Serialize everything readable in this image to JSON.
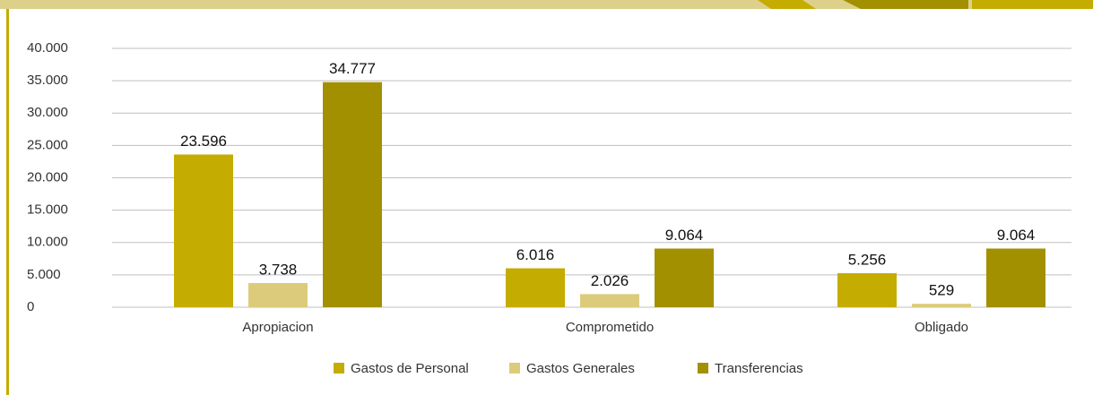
{
  "chart_data": {
    "type": "bar",
    "categories": [
      "Apropiacion",
      "Comprometido",
      "Obligado"
    ],
    "series": [
      {
        "name": "Gastos de Personal",
        "color": "#c4ac00",
        "values": [
          23596,
          6016,
          5256
        ],
        "value_labels": [
          "23.596",
          "6.016",
          "5.256"
        ]
      },
      {
        "name": "Gastos Generales",
        "color": "#dccb7a",
        "values": [
          3738,
          2026,
          529
        ],
        "value_labels": [
          "3.738",
          "2.026",
          "529"
        ]
      },
      {
        "name": "Transferencias",
        "color": "#a39000",
        "values": [
          34777,
          9064,
          9064
        ],
        "value_labels": [
          "34.777",
          "9.064",
          "9.064"
        ]
      }
    ],
    "ylim": [
      0,
      40000
    ],
    "yticks": [
      0,
      {
        "value": 5000,
        "label": "5.000"
      },
      {
        "value": 10000,
        "label": "10.000"
      },
      {
        "value": 15000,
        "label": "15.000"
      },
      {
        "value": 20000,
        "label": "20.000"
      },
      {
        "value": 25000,
        "label": "25.000"
      },
      {
        "value": 30000,
        "label": "30.000"
      },
      {
        "value": 35000,
        "label": "35.000"
      },
      {
        "value": 40000,
        "label": "40.000"
      }
    ],
    "grid": true,
    "legend": "bottom"
  }
}
